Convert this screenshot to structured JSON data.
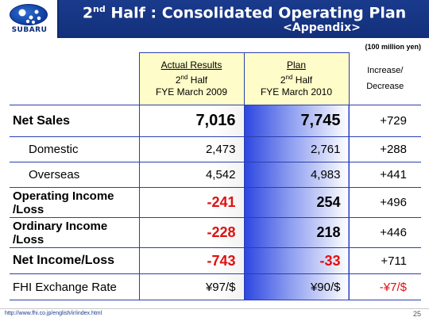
{
  "header": {
    "logo_text": "SUBARU",
    "title_pre": "2",
    "title_sup": "nd",
    "title_post": " Half : Consolidated Operating Plan",
    "subtitle": "<Appendix>"
  },
  "unit_note": "(100 million yen)",
  "columns": {
    "actual": {
      "line1": "Actual Results",
      "line2_num": "2",
      "line2_sup": "nd",
      "line2_rest": " Half",
      "line3": "FYE March 2009"
    },
    "plan": {
      "line1": "Plan",
      "line2_num": "2",
      "line2_sup": "nd",
      "line2_rest": " Half",
      "line3": "FYE March 2010"
    },
    "increase": {
      "line1": "Increase/",
      "line2": "Decrease"
    }
  },
  "rows": [
    {
      "label": "Net Sales",
      "actual": "7,016",
      "plan": "7,745",
      "change": "+729"
    },
    {
      "label": "Domestic",
      "actual": "2,473",
      "plan": "2,761",
      "change": "+288"
    },
    {
      "label": "Overseas",
      "actual": "4,542",
      "plan": "4,983",
      "change": "+441"
    },
    {
      "label_line1": "Operating Income",
      "label_line2": "/Loss",
      "actual": "-241",
      "plan": "254",
      "change": "+496"
    },
    {
      "label_line1": "Ordinary Income",
      "label_line2": "/Loss",
      "actual": "-228",
      "plan": "218",
      "change": "+446"
    },
    {
      "label": "Net Income/Loss",
      "actual": "-743",
      "plan": "-33",
      "change": "+711"
    },
    {
      "label": "FHI Exchange Rate",
      "actual": "¥97/$",
      "plan": "¥90/$",
      "change": "-¥7/$"
    }
  ],
  "footer": {
    "url": "http://www.fhi.co.jp/english/ir/index.html",
    "page_number": "25"
  },
  "colors": {
    "header_blue": "#1a3a8c",
    "negative_red": "#e01010",
    "header_cell_yellow": "#fefcc8"
  }
}
